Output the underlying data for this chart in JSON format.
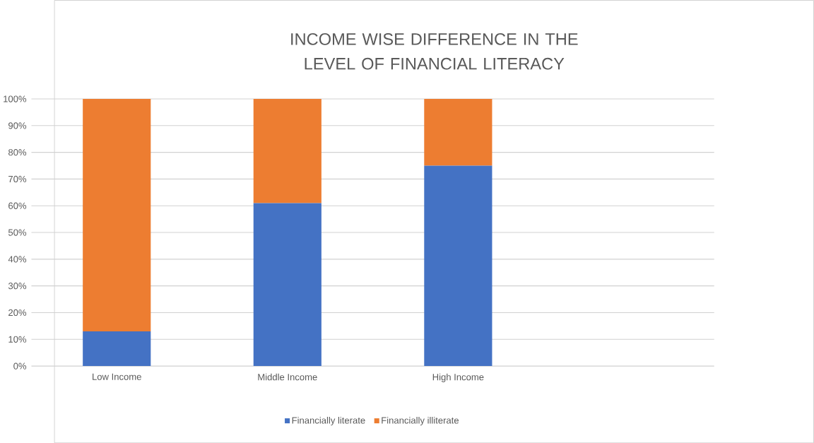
{
  "chart_data": {
    "type": "bar",
    "stacked": true,
    "title": "INCOME WISE DIFFERENCE IN THE LEVEL OF FINANCIAL LITERACY",
    "categories": [
      "Low Income",
      "Middle Income",
      "High Income",
      null
    ],
    "series": [
      {
        "name": "Financially literate",
        "color": "#4472c4",
        "values": [
          13,
          61,
          75,
          null
        ]
      },
      {
        "name": "Financially illiterate",
        "color": "#ed7d31",
        "values": [
          87,
          39,
          25,
          null
        ]
      }
    ],
    "ylim": [
      0,
      100
    ],
    "yticks": [
      {
        "value": 0,
        "label": "0%"
      },
      {
        "value": 10,
        "label": "10%"
      },
      {
        "value": 20,
        "label": "20%"
      },
      {
        "value": 30,
        "label": "30%"
      },
      {
        "value": 40,
        "label": "40%"
      },
      {
        "value": 50,
        "label": "50%"
      },
      {
        "value": 60,
        "label": "60%"
      },
      {
        "value": 70,
        "label": "70%"
      },
      {
        "value": 80,
        "label": "80%"
      },
      {
        "value": 90,
        "label": "90%"
      },
      {
        "value": 100,
        "label": "100%"
      }
    ],
    "grid": "y",
    "legend": "bottom"
  }
}
